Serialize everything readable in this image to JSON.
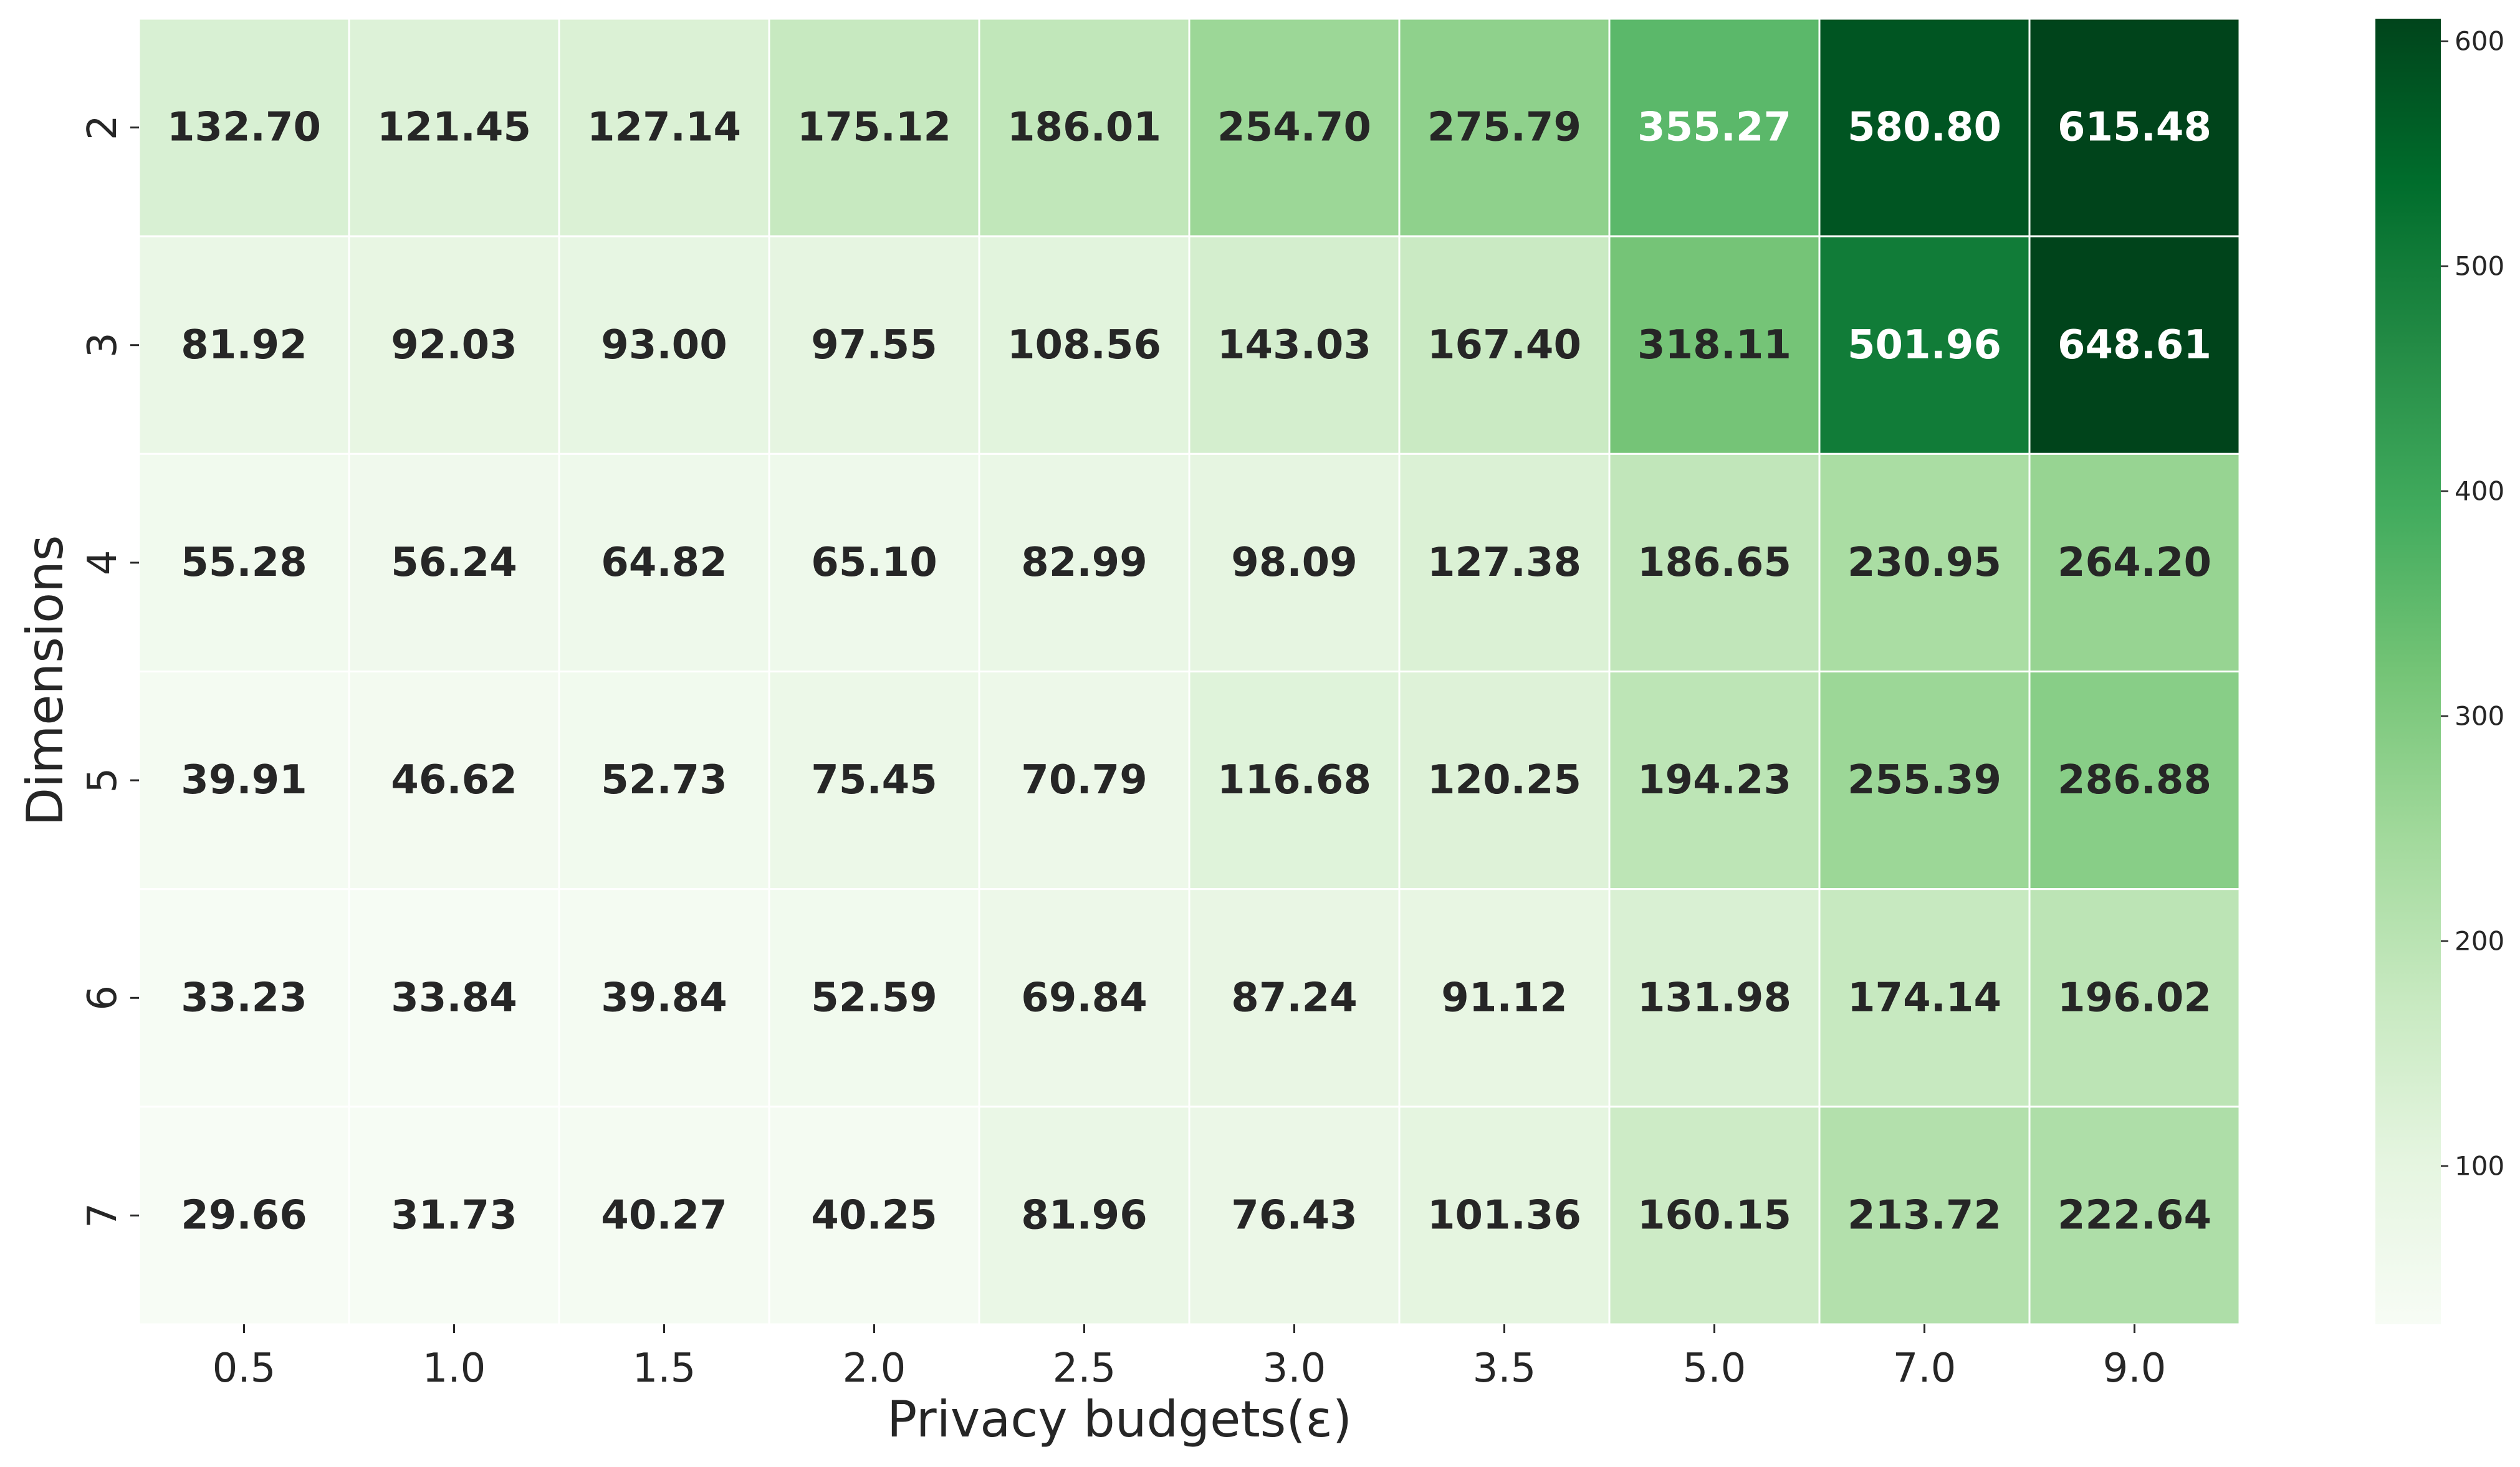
{
  "chart_data": {
    "type": "heatmap",
    "title": "",
    "xlabel": "Privacy budgets(ε)",
    "ylabel": "Dimensions",
    "x_categories": [
      "0.5",
      "1.0",
      "1.5",
      "2.0",
      "2.5",
      "3.0",
      "3.5",
      "5.0",
      "7.0",
      "9.0"
    ],
    "y_categories": [
      "2",
      "3",
      "4",
      "5",
      "6",
      "7"
    ],
    "values": [
      [
        "132.70",
        "121.45",
        "127.14",
        "175.12",
        "186.01",
        "254.70",
        "275.79",
        "355.27",
        "580.80",
        "615.48"
      ],
      [
        "81.92",
        "92.03",
        "93.00",
        "97.55",
        "108.56",
        "143.03",
        "167.40",
        "318.11",
        "501.96",
        "648.61"
      ],
      [
        "55.28",
        "56.24",
        "64.82",
        "65.10",
        "82.99",
        "98.09",
        "127.38",
        "186.65",
        "230.95",
        "264.20"
      ],
      [
        "39.91",
        "46.62",
        "52.73",
        "75.45",
        "70.79",
        "116.68",
        "120.25",
        "194.23",
        "255.39",
        "286.88"
      ],
      [
        "33.23",
        "33.84",
        "39.84",
        "52.59",
        "69.84",
        "87.24",
        "91.12",
        "131.98",
        "174.14",
        "196.02"
      ],
      [
        "29.66",
        "31.73",
        "40.27",
        "40.25",
        "81.96",
        "76.43",
        "101.36",
        "160.15",
        "213.72",
        "222.64"
      ]
    ],
    "colormap": "Greens",
    "color_range": [
      29.66,
      610
    ],
    "colorbar": {
      "ticks": [
        "100",
        "200",
        "300",
        "400",
        "500",
        "600"
      ],
      "placement": "right"
    },
    "annotated": true,
    "grid": false
  }
}
